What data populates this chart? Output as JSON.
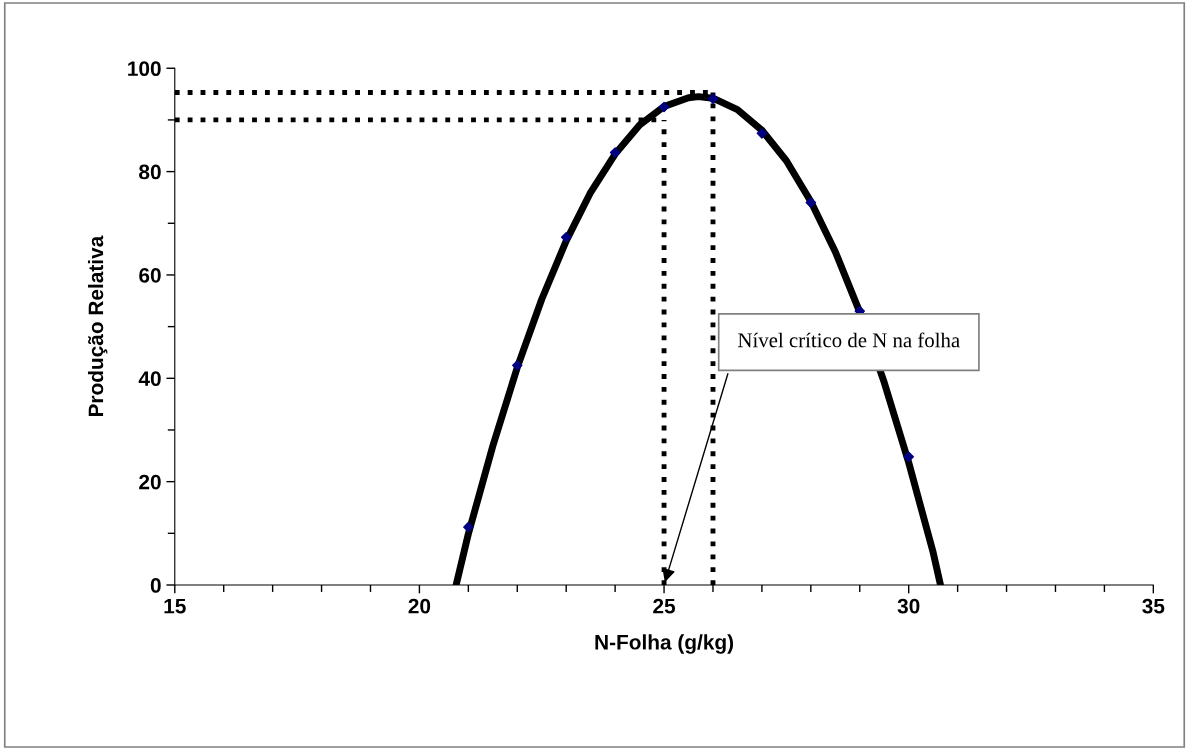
{
  "chart_data": {
    "type": "line",
    "xlabel": "N-Folha (g/kg)",
    "ylabel": "Produção Relativa",
    "xlim": [
      15,
      35
    ],
    "xticks": [
      15,
      20,
      25,
      30,
      35
    ],
    "ylim": [
      0,
      100
    ],
    "yticks": [
      0,
      20,
      40,
      60,
      80,
      100
    ],
    "grid": false,
    "legend": false,
    "series": [
      {
        "color": "#000000",
        "marker": "none",
        "line_style": "solid",
        "x": [
          20.75,
          21,
          21.5,
          22,
          22.5,
          23,
          23.5,
          24,
          24.5,
          25,
          25.5,
          25.7,
          26,
          26.5,
          27,
          27.5,
          28,
          28.5,
          29,
          29.5,
          30,
          30.5,
          30.65
        ],
        "values": [
          0,
          9.9,
          26.9,
          42.1,
          55.3,
          66.6,
          76.0,
          83.4,
          89.0,
          92.6,
          94.3,
          94.5,
          94.2,
          92.0,
          88.0,
          82.1,
          74.2,
          64.5,
          52.8,
          39.2,
          23.7,
          6.3,
          0
        ]
      },
      {
        "type": "scatter",
        "color": "#000080",
        "marker": "diamond",
        "x": [
          21,
          22,
          23,
          24,
          25,
          26,
          27,
          28,
          29,
          30
        ],
        "values": [
          11.2,
          42.5,
          67.3,
          83.7,
          92.5,
          94.1,
          87.4,
          74,
          53,
          24.8
        ]
      }
    ],
    "ref_lines": [
      {
        "axis": "y",
        "value": 95.3,
        "color": "#000000",
        "line_style": "dotted"
      },
      {
        "axis": "y",
        "value": 90,
        "color": "#000000",
        "line_style": "dotted"
      },
      {
        "axis": "x",
        "value": 26,
        "color": "#000000",
        "line_style": "dotted"
      },
      {
        "axis": "x",
        "value": 25,
        "color": "#000000",
        "line_style": "dotted"
      }
    ],
    "annotations": [
      "Nível crítico de N na folha"
    ]
  }
}
